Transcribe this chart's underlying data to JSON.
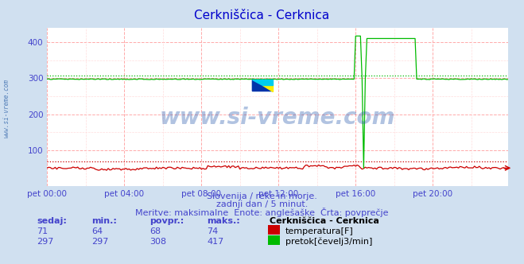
{
  "title": "Cerkniščica - Cerknica",
  "title_color": "#0000cc",
  "bg_color": "#d0e0f0",
  "plot_bg_color": "#ffffff",
  "grid_color_major": "#ffaaaa",
  "grid_color_minor": "#ffdddd",
  "tick_color": "#4444cc",
  "ylabel_ticks": [
    100,
    200,
    300,
    400
  ],
  "ylim": [
    0,
    440
  ],
  "xlim": [
    0,
    287
  ],
  "xtick_labels": [
    "pet 00:00",
    "pet 04:00",
    "pet 08:00",
    "pet 12:00",
    "pet 16:00",
    "pet 20:00"
  ],
  "xtick_positions": [
    0,
    48,
    96,
    144,
    192,
    240
  ],
  "n_points": 288,
  "temp_color": "#cc0000",
  "flow_color": "#00bb00",
  "temp_avg": 68,
  "flow_avg": 308,
  "temp_value": 71,
  "temp_min": 64,
  "temp_max": 74,
  "flow_value": 297,
  "flow_min": 297,
  "flow_max": 417,
  "subtitle1": "Slovenija / reke in morje.",
  "subtitle2": "zadnji dan / 5 minut.",
  "subtitle3": "Meritve: maksimalne  Enote: anglešaške  Črta: povprečje",
  "legend_title": "Cerkniščica - Cerknica",
  "legend_temp": "temperatura[F]",
  "legend_flow": "pretok[čevelj3/min]",
  "watermark": "www.si-vreme.com",
  "watermark_color": "#2255aa",
  "watermark_alpha": 0.35,
  "left_label": "www.si-vreme.com",
  "left_label_color": "#3366aa"
}
